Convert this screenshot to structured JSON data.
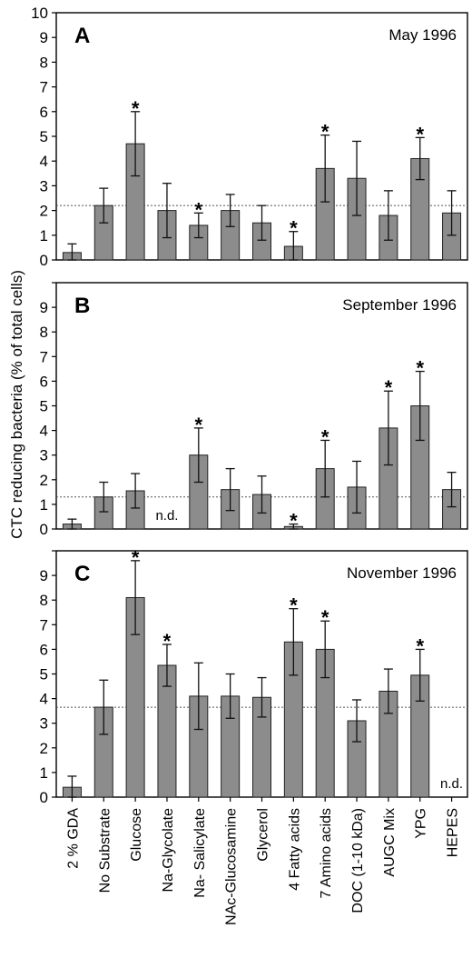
{
  "chart_data": {
    "type": "bar",
    "ylabel": "CTC reducing bacteria (% of total cells)",
    "ylim": [
      0,
      10
    ],
    "yticks": [
      0,
      1,
      2,
      3,
      4,
      5,
      6,
      7,
      8,
      9,
      10
    ],
    "categories": [
      "2 % GDA",
      "No Substrate",
      "Glucose",
      "Na-Glycolate",
      "Na- Salicylate",
      "NAc-Glucosamine",
      "Glycerol",
      "4 Fatty acids",
      "7 Amino acids",
      "DOC (1-10 kDa)",
      "AUGC Mix",
      "YPG",
      "HEPES"
    ],
    "not_determined_label": "n.d.",
    "significance_marker": "*",
    "panels": [
      {
        "letter": "A",
        "title": "May 1996",
        "reference_line": 2.2,
        "values": [
          0.3,
          2.2,
          4.7,
          2.0,
          1.4,
          2.0,
          1.5,
          0.55,
          3.7,
          3.3,
          1.8,
          4.1,
          1.9
        ],
        "errors": [
          0.35,
          0.7,
          1.3,
          1.1,
          0.5,
          0.65,
          0.7,
          0.6,
          1.35,
          1.5,
          1.0,
          0.85,
          0.9
        ],
        "significant": [
          false,
          false,
          true,
          false,
          true,
          false,
          false,
          true,
          true,
          false,
          false,
          true,
          false
        ],
        "not_determined": [
          false,
          false,
          false,
          false,
          false,
          false,
          false,
          false,
          false,
          false,
          false,
          false,
          false
        ]
      },
      {
        "letter": "B",
        "title": "September 1996",
        "reference_line": 1.3,
        "values": [
          0.2,
          1.3,
          1.55,
          null,
          3.0,
          1.6,
          1.4,
          0.1,
          2.45,
          1.7,
          4.1,
          5.0,
          1.6
        ],
        "errors": [
          0.2,
          0.6,
          0.7,
          null,
          1.1,
          0.85,
          0.75,
          0.1,
          1.15,
          1.05,
          1.5,
          1.4,
          0.7
        ],
        "significant": [
          false,
          false,
          false,
          false,
          true,
          false,
          false,
          true,
          true,
          false,
          true,
          true,
          false
        ],
        "not_determined": [
          false,
          false,
          false,
          true,
          false,
          false,
          false,
          false,
          false,
          false,
          false,
          false,
          false
        ]
      },
      {
        "letter": "C",
        "title": "November 1996",
        "reference_line": 3.65,
        "values": [
          0.4,
          3.65,
          8.1,
          5.35,
          4.1,
          4.1,
          4.05,
          6.3,
          6.0,
          3.1,
          4.3,
          4.95,
          null
        ],
        "errors": [
          0.45,
          1.1,
          1.5,
          0.85,
          1.35,
          0.9,
          0.8,
          1.35,
          1.15,
          0.85,
          0.9,
          1.05,
          null
        ],
        "significant": [
          false,
          false,
          true,
          true,
          false,
          false,
          false,
          true,
          true,
          false,
          false,
          true,
          false
        ],
        "not_determined": [
          false,
          false,
          false,
          false,
          false,
          false,
          false,
          false,
          false,
          false,
          false,
          false,
          true
        ]
      }
    ]
  }
}
